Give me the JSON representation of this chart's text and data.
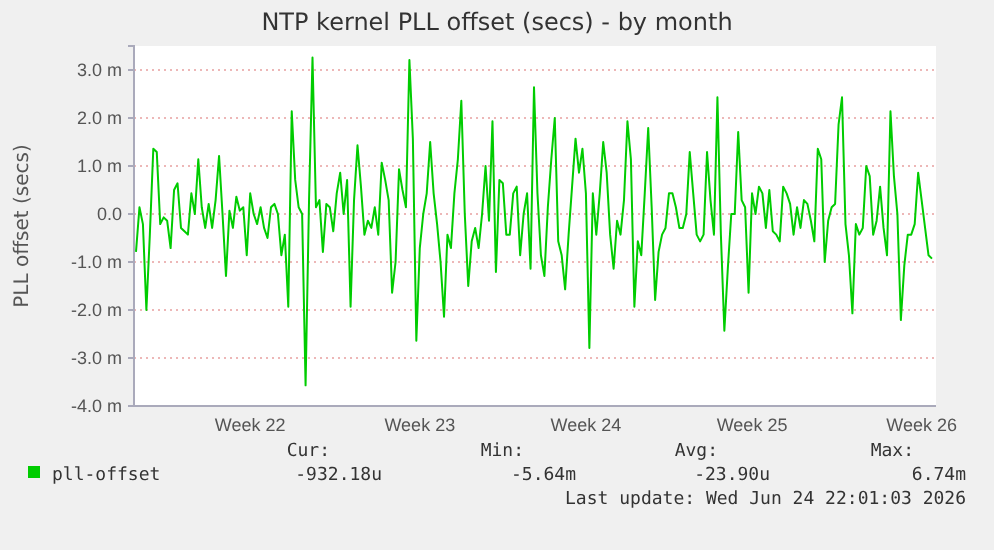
{
  "chart_data": {
    "type": "line",
    "title": "NTP kernel PLL offset (secs) - by month",
    "ylabel": "PLL offset (secs)",
    "ylim": [
      -4,
      3.5
    ],
    "categories": [
      null,
      null,
      null,
      null,
      null,
      null,
      null,
      null,
      null,
      null,
      null,
      null,
      null,
      null,
      null,
      null,
      null,
      null,
      null,
      null,
      null,
      null,
      null,
      null,
      null,
      null,
      null,
      null,
      null,
      null,
      null,
      null,
      null,
      "Week 22",
      null,
      null,
      null,
      null,
      null,
      null,
      null,
      null,
      null,
      null,
      null,
      null,
      null,
      null,
      null,
      null,
      null,
      null,
      null,
      null,
      null,
      null,
      null,
      null,
      null,
      null,
      null,
      null,
      null,
      null,
      null,
      null,
      null,
      null,
      null,
      null,
      null,
      null,
      null,
      null,
      null,
      null,
      null,
      null,
      null,
      null,
      null,
      null,
      "Week 23",
      null,
      null,
      null,
      null,
      null,
      null,
      null,
      null,
      null,
      null,
      null,
      null,
      null,
      null,
      null,
      null,
      null,
      null,
      null,
      null,
      null,
      null,
      null,
      null,
      null,
      null,
      null,
      null,
      null,
      null,
      null,
      null,
      null,
      null,
      null,
      null,
      null,
      null,
      null,
      null,
      null,
      null,
      null,
      null,
      null,
      null,
      null,
      "Week 24",
      null,
      null,
      null,
      null,
      null,
      null,
      null,
      null,
      null,
      null,
      null,
      null,
      null,
      null,
      null,
      null,
      null,
      null,
      null,
      null,
      null,
      null,
      null,
      null,
      null,
      null,
      null,
      null,
      null,
      null,
      null,
      null,
      null,
      null,
      null,
      null,
      null,
      null,
      null,
      null,
      null,
      null,
      null,
      null,
      null,
      null,
      null,
      "Week 25",
      null,
      null,
      null,
      null,
      null,
      null,
      null,
      null,
      null,
      null,
      null,
      null,
      null,
      null,
      null,
      null,
      null,
      null,
      null,
      null,
      null,
      null,
      null,
      null,
      null,
      null,
      null,
      null,
      null,
      null,
      null,
      null,
      null,
      null,
      null,
      null,
      null,
      null,
      null,
      null,
      null,
      null,
      null,
      null,
      null,
      null,
      null,
      null,
      "Week 26",
      null,
      null,
      null
    ],
    "yticks": [
      {
        "value": -4,
        "label": "-4.0 m"
      },
      {
        "value": -3,
        "label": "-3.0 m"
      },
      {
        "value": -2,
        "label": "-2.0 m"
      },
      {
        "value": -1,
        "label": "-1.0 m"
      },
      {
        "value": 0,
        "label": "0.0"
      },
      {
        "value": 1,
        "label": "1.0 m"
      },
      {
        "value": 2,
        "label": "2.0 m"
      },
      {
        "value": 3,
        "label": "3.0 m"
      }
    ],
    "grid": "y",
    "legend": "bottom",
    "marker": "none",
    "line_style": "solid",
    "annotations": [
      "Cur:",
      "Min:",
      "Avg:",
      "Max:",
      "-932.18u",
      "-5.64m",
      "-23.90u",
      "6.74m",
      "Last update: Wed Jun 24 22:01:03 2026"
    ],
    "series": [
      {
        "name": "pll-offset",
        "color": "#00cc00",
        "values": [
          -0.79,
          0.14,
          -0.21,
          -2.0,
          -0.43,
          1.36,
          1.29,
          -0.21,
          -0.07,
          -0.14,
          -0.71,
          0.5,
          0.64,
          -0.29,
          -0.36,
          -0.43,
          0.43,
          0,
          1.14,
          0.14,
          -0.29,
          0.21,
          -0.29,
          0.29,
          1.21,
          0,
          -1.29,
          0.07,
          -0.29,
          0.36,
          0.07,
          0.14,
          -0.86,
          0.43,
          0,
          -0.21,
          0.14,
          -0.29,
          -0.5,
          0.14,
          0.21,
          0,
          -0.86,
          -0.43,
          -1.93,
          2.14,
          0.71,
          0.14,
          0,
          -3.57,
          0.29,
          3.26,
          0.14,
          0.29,
          -0.79,
          0.21,
          0.14,
          -0.36,
          0.43,
          0.86,
          0,
          0.71,
          -1.93,
          0.29,
          1.43,
          0.57,
          -0.43,
          -0.14,
          -0.29,
          0.14,
          -0.43,
          1.07,
          0.71,
          0.29,
          -1.64,
          -1.0,
          0.93,
          0.5,
          0.14,
          3.21,
          1.57,
          -2.64,
          -0.71,
          0,
          0.43,
          1.5,
          0.43,
          -0.21,
          -1.0,
          -2.14,
          -0.43,
          -0.71,
          0.43,
          1.14,
          2.36,
          0,
          -1.5,
          -0.57,
          -0.29,
          -0.71,
          0,
          1.0,
          -0.14,
          1.93,
          -1.21,
          0.71,
          0.64,
          -0.43,
          -0.43,
          0.43,
          0.57,
          -0.86,
          0,
          0.43,
          -1.14,
          2.64,
          0.43,
          -0.86,
          -1.29,
          0.14,
          1.14,
          2.0,
          -0.57,
          -0.86,
          -1.57,
          -0.43,
          0.57,
          1.57,
          0.86,
          1.36,
          0.43,
          -2.79,
          0.43,
          -0.43,
          0.43,
          1.5,
          0.86,
          -0.43,
          -1.14,
          -0.14,
          -0.43,
          0.29,
          1.93,
          1.14,
          -1.93,
          -0.57,
          -0.86,
          0.43,
          1.79,
          0.14,
          -1.79,
          -0.79,
          -0.43,
          -0.29,
          0.43,
          0.43,
          0.14,
          -0.29,
          -0.29,
          0,
          1.29,
          0.43,
          -0.43,
          -0.57,
          -0.43,
          1.29,
          0.29,
          -0.43,
          2.43,
          -0.43,
          -2.43,
          -1.14,
          0,
          0,
          1.71,
          0.29,
          0.14,
          -1.64,
          0.43,
          0,
          0.57,
          0.43,
          -0.29,
          0.5,
          -0.36,
          -0.43,
          -0.57,
          0.57,
          0.43,
          0.21,
          -0.43,
          0.14,
          -0.29,
          0.29,
          0.21,
          -0.14,
          -0.57,
          1.36,
          1.14,
          -1.0,
          -0.14,
          0.14,
          0.21,
          1.86,
          2.43,
          -0.21,
          -0.86,
          -2.07,
          -0.21,
          -0.43,
          -0.29,
          1.0,
          0.79,
          -0.43,
          -0.14,
          0.57,
          -0.29,
          -0.86,
          2.14,
          0.79,
          0,
          -2.21,
          -1.07,
          -0.43,
          -0.43,
          -0.21,
          0.86,
          0.29,
          -0.29,
          -0.86,
          -0.93
        ]
      }
    ]
  }
}
